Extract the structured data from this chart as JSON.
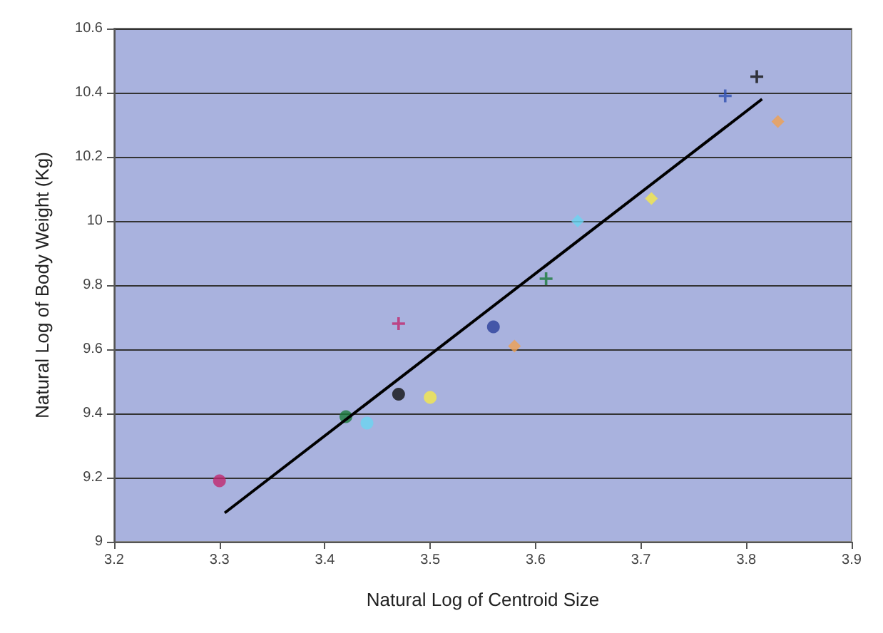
{
  "chart_data": {
    "type": "scatter",
    "xlabel": "Natural Log of Centroid Size",
    "ylabel": "Natural Log of Body Weight (Kg)",
    "xlim": [
      3.2,
      3.9
    ],
    "xticks": [
      3.2,
      3.3,
      3.4,
      3.5,
      3.6,
      3.7,
      3.8,
      3.9
    ],
    "ylim": [
      9,
      10.6
    ],
    "yticks": [
      9,
      9.2,
      9.4,
      9.6,
      9.8,
      10,
      10.2,
      10.4,
      10.6
    ],
    "grid": "y",
    "series": [
      {
        "marker": "circle",
        "x": [
          3.3,
          3.42,
          3.44,
          3.47,
          3.5,
          3.56
        ],
        "values": [
          9.19,
          9.39,
          9.37,
          9.46,
          9.45,
          9.67
        ],
        "colors": [
          "#c0286e",
          "#1a7a3a",
          "#6ad4f0",
          "#111111",
          "#f5e84a",
          "#2a3f9a"
        ]
      },
      {
        "marker": "cross",
        "x": [
          3.47,
          3.61,
          3.78,
          3.81
        ],
        "values": [
          9.68,
          9.82,
          10.39,
          10.45
        ],
        "colors": [
          "#c0286e",
          "#1a7a3a",
          "#2f50b0",
          "#111111"
        ]
      },
      {
        "marker": "diamond",
        "x": [
          3.58,
          3.64,
          3.71,
          3.83
        ],
        "values": [
          9.61,
          10.0,
          10.07,
          10.31
        ],
        "colors": [
          "#f0a050",
          "#6ad4f0",
          "#f5e84a",
          "#f0a050"
        ]
      },
      {
        "type": "line",
        "color": "#000000",
        "x": [
          3.305,
          3.815
        ],
        "values": [
          9.09,
          10.38
        ]
      }
    ]
  }
}
